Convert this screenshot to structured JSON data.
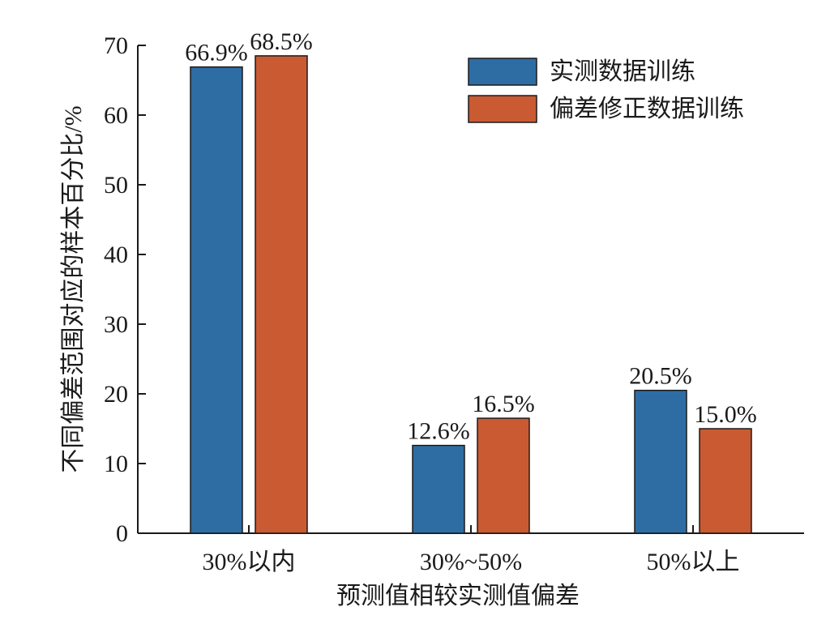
{
  "chart_data": {
    "type": "bar",
    "categories": [
      "30%以内",
      "30%~50%",
      "50%以上"
    ],
    "series": [
      {
        "name": "实测数据训练",
        "values": [
          66.9,
          12.6,
          20.5
        ],
        "labels": [
          "66.9%",
          "12.6%",
          "20.5%"
        ],
        "color": "#2e6da4"
      },
      {
        "name": "偏差修正数据训练",
        "values": [
          68.5,
          16.5,
          15.0
        ],
        "labels": [
          "68.5%",
          "16.5%",
          "15.0%"
        ],
        "color": "#c95a32"
      }
    ],
    "xlabel": "预测值相较实测值偏差",
    "ylabel": "不同偏差范围对应的样本百分比/%",
    "ylim": [
      0,
      70
    ],
    "yticks": [
      0,
      10,
      20,
      30,
      40,
      50,
      60,
      70
    ],
    "grid": false,
    "legend_position": "top-right"
  }
}
